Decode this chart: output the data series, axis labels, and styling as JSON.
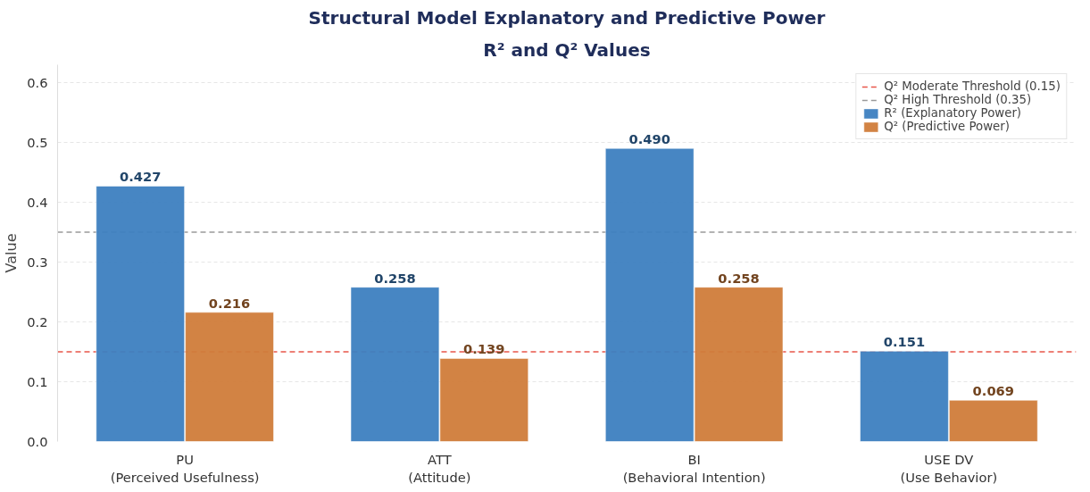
{
  "chart_data": {
    "type": "bar",
    "title": "Structural Model Explanatory and Predictive Power",
    "subtitle": "R² and Q² Values",
    "ylabel": "Value",
    "categories": [
      "PU\n(Perceived Usefulness)",
      "ATT\n(Attitude)",
      "BI\n(Behavioral Intention)",
      "USE DV\n(Use Behavior)"
    ],
    "series": [
      {
        "name": "R² (Explanatory Power)",
        "color": "#3d7fc0",
        "values": [
          0.427,
          0.258,
          0.49,
          0.151
        ],
        "value_labels": [
          "0.427",
          "0.258",
          "0.490",
          "0.151"
        ]
      },
      {
        "name": "Q² (Predictive Power)",
        "color": "#d07c3a",
        "values": [
          0.216,
          0.139,
          0.258,
          0.069
        ],
        "value_labels": [
          "0.216",
          "0.139",
          "0.258",
          "0.069"
        ]
      }
    ],
    "ref_lines": [
      {
        "axis": "y",
        "value": 0.15,
        "label": "Q² Moderate Threshold (0.15)",
        "color": "#e8564a",
        "line_style": "dashed"
      },
      {
        "axis": "y",
        "value": 0.35,
        "label": "Q² High Threshold (0.35)",
        "color": "#9a9a9a",
        "line_style": "dashed"
      }
    ],
    "ylim": [
      0,
      0.63
    ],
    "yticks": [
      {
        "value": 0,
        "label": "0.0"
      },
      0.1,
      0.2,
      0.3,
      0.4,
      0.5,
      0.6
    ],
    "grid": "y",
    "legend": "top right"
  }
}
